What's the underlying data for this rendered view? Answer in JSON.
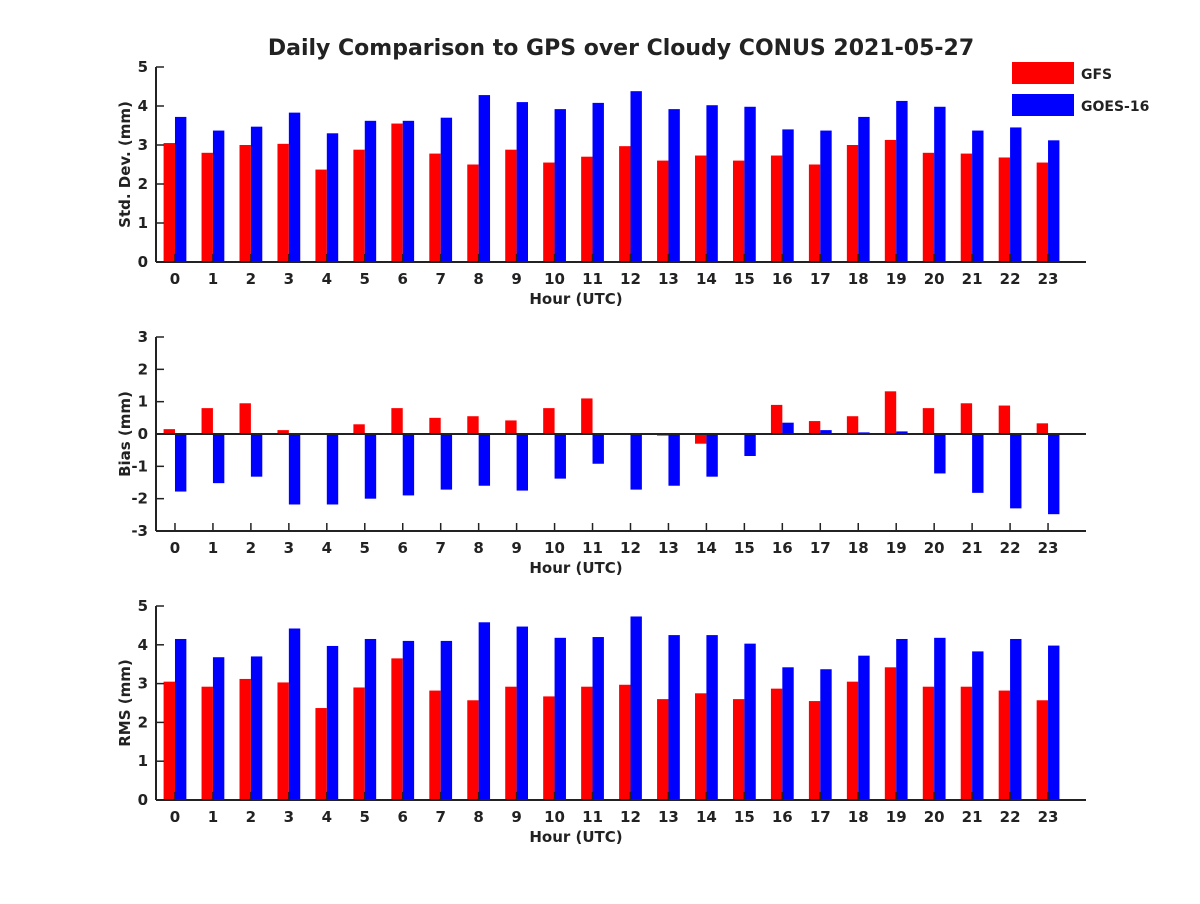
{
  "title": "Daily Comparison to GPS over Cloudy CONUS 2021-05-27",
  "colors": {
    "gfs": "#ff0000",
    "goes": "#0000ff",
    "axis": "#222222"
  },
  "legend": {
    "placement": "top-right",
    "entries": [
      "GFS",
      "GOES-16"
    ]
  },
  "chart_data": [
    {
      "type": "bar",
      "xlabel": "Hour (UTC)",
      "ylabel": "Std. Dev. (mm)",
      "ylim": [
        0,
        5
      ],
      "yticks": [
        0,
        1,
        2,
        3,
        4,
        5
      ],
      "categories": [
        "0",
        "1",
        "2",
        "3",
        "4",
        "5",
        "6",
        "7",
        "8",
        "9",
        "10",
        "11",
        "12",
        "13",
        "14",
        "15",
        "16",
        "17",
        "18",
        "19",
        "20",
        "21",
        "22",
        "23"
      ],
      "series": [
        {
          "name": "GFS",
          "values": [
            3.05,
            2.8,
            3.0,
            3.03,
            2.37,
            2.88,
            3.55,
            2.78,
            2.5,
            2.88,
            2.55,
            2.7,
            2.97,
            2.6,
            2.73,
            2.6,
            2.73,
            2.5,
            3.0,
            3.13,
            2.8,
            2.78,
            2.68,
            2.55
          ]
        },
        {
          "name": "GOES-16",
          "values": [
            3.72,
            3.37,
            3.47,
            3.83,
            3.3,
            3.62,
            3.62,
            3.7,
            4.28,
            4.1,
            3.92,
            4.08,
            4.38,
            3.92,
            4.02,
            3.98,
            3.4,
            3.37,
            3.72,
            4.13,
            3.98,
            3.37,
            3.45,
            3.12
          ]
        }
      ]
    },
    {
      "type": "bar",
      "xlabel": "Hour (UTC)",
      "ylabel": "Bias (mm)",
      "ylim": [
        -3,
        3
      ],
      "yticks": [
        -3,
        -2,
        -1,
        0,
        1,
        2,
        3
      ],
      "categories": [
        "0",
        "1",
        "2",
        "3",
        "4",
        "5",
        "6",
        "7",
        "8",
        "9",
        "10",
        "11",
        "12",
        "13",
        "14",
        "15",
        "16",
        "17",
        "18",
        "19",
        "20",
        "21",
        "22",
        "23"
      ],
      "series": [
        {
          "name": "GFS",
          "values": [
            0.15,
            0.8,
            0.95,
            0.12,
            0.0,
            0.3,
            0.8,
            0.5,
            0.55,
            0.42,
            0.8,
            1.1,
            -0.03,
            -0.05,
            -0.3,
            0.02,
            0.9,
            0.4,
            0.55,
            1.32,
            0.8,
            0.95,
            0.88,
            0.33
          ]
        },
        {
          "name": "GOES-16",
          "values": [
            -1.78,
            -1.52,
            -1.32,
            -2.18,
            -2.18,
            -2.0,
            -1.9,
            -1.72,
            -1.6,
            -1.75,
            -1.38,
            -0.92,
            -1.72,
            -1.6,
            -1.32,
            -0.68,
            0.35,
            0.12,
            0.05,
            0.08,
            -1.22,
            -1.82,
            -2.3,
            -2.48
          ]
        }
      ]
    },
    {
      "type": "bar",
      "xlabel": "Hour (UTC)",
      "ylabel": "RMS (mm)",
      "ylim": [
        0,
        5
      ],
      "yticks": [
        0,
        1,
        2,
        3,
        4,
        5
      ],
      "categories": [
        "0",
        "1",
        "2",
        "3",
        "4",
        "5",
        "6",
        "7",
        "8",
        "9",
        "10",
        "11",
        "12",
        "13",
        "14",
        "15",
        "16",
        "17",
        "18",
        "19",
        "20",
        "21",
        "22",
        "23"
      ],
      "series": [
        {
          "name": "GFS",
          "values": [
            3.05,
            2.92,
            3.12,
            3.03,
            2.37,
            2.9,
            3.65,
            2.82,
            2.57,
            2.92,
            2.67,
            2.92,
            2.97,
            2.6,
            2.75,
            2.6,
            2.87,
            2.55,
            3.05,
            3.42,
            2.92,
            2.92,
            2.82,
            2.57
          ]
        },
        {
          "name": "GOES-16",
          "values": [
            4.15,
            3.68,
            3.7,
            4.42,
            3.97,
            4.15,
            4.1,
            4.1,
            4.58,
            4.47,
            4.18,
            4.2,
            4.73,
            4.25,
            4.25,
            4.03,
            3.42,
            3.37,
            3.72,
            4.15,
            4.18,
            3.83,
            4.15,
            3.98
          ]
        }
      ]
    }
  ]
}
